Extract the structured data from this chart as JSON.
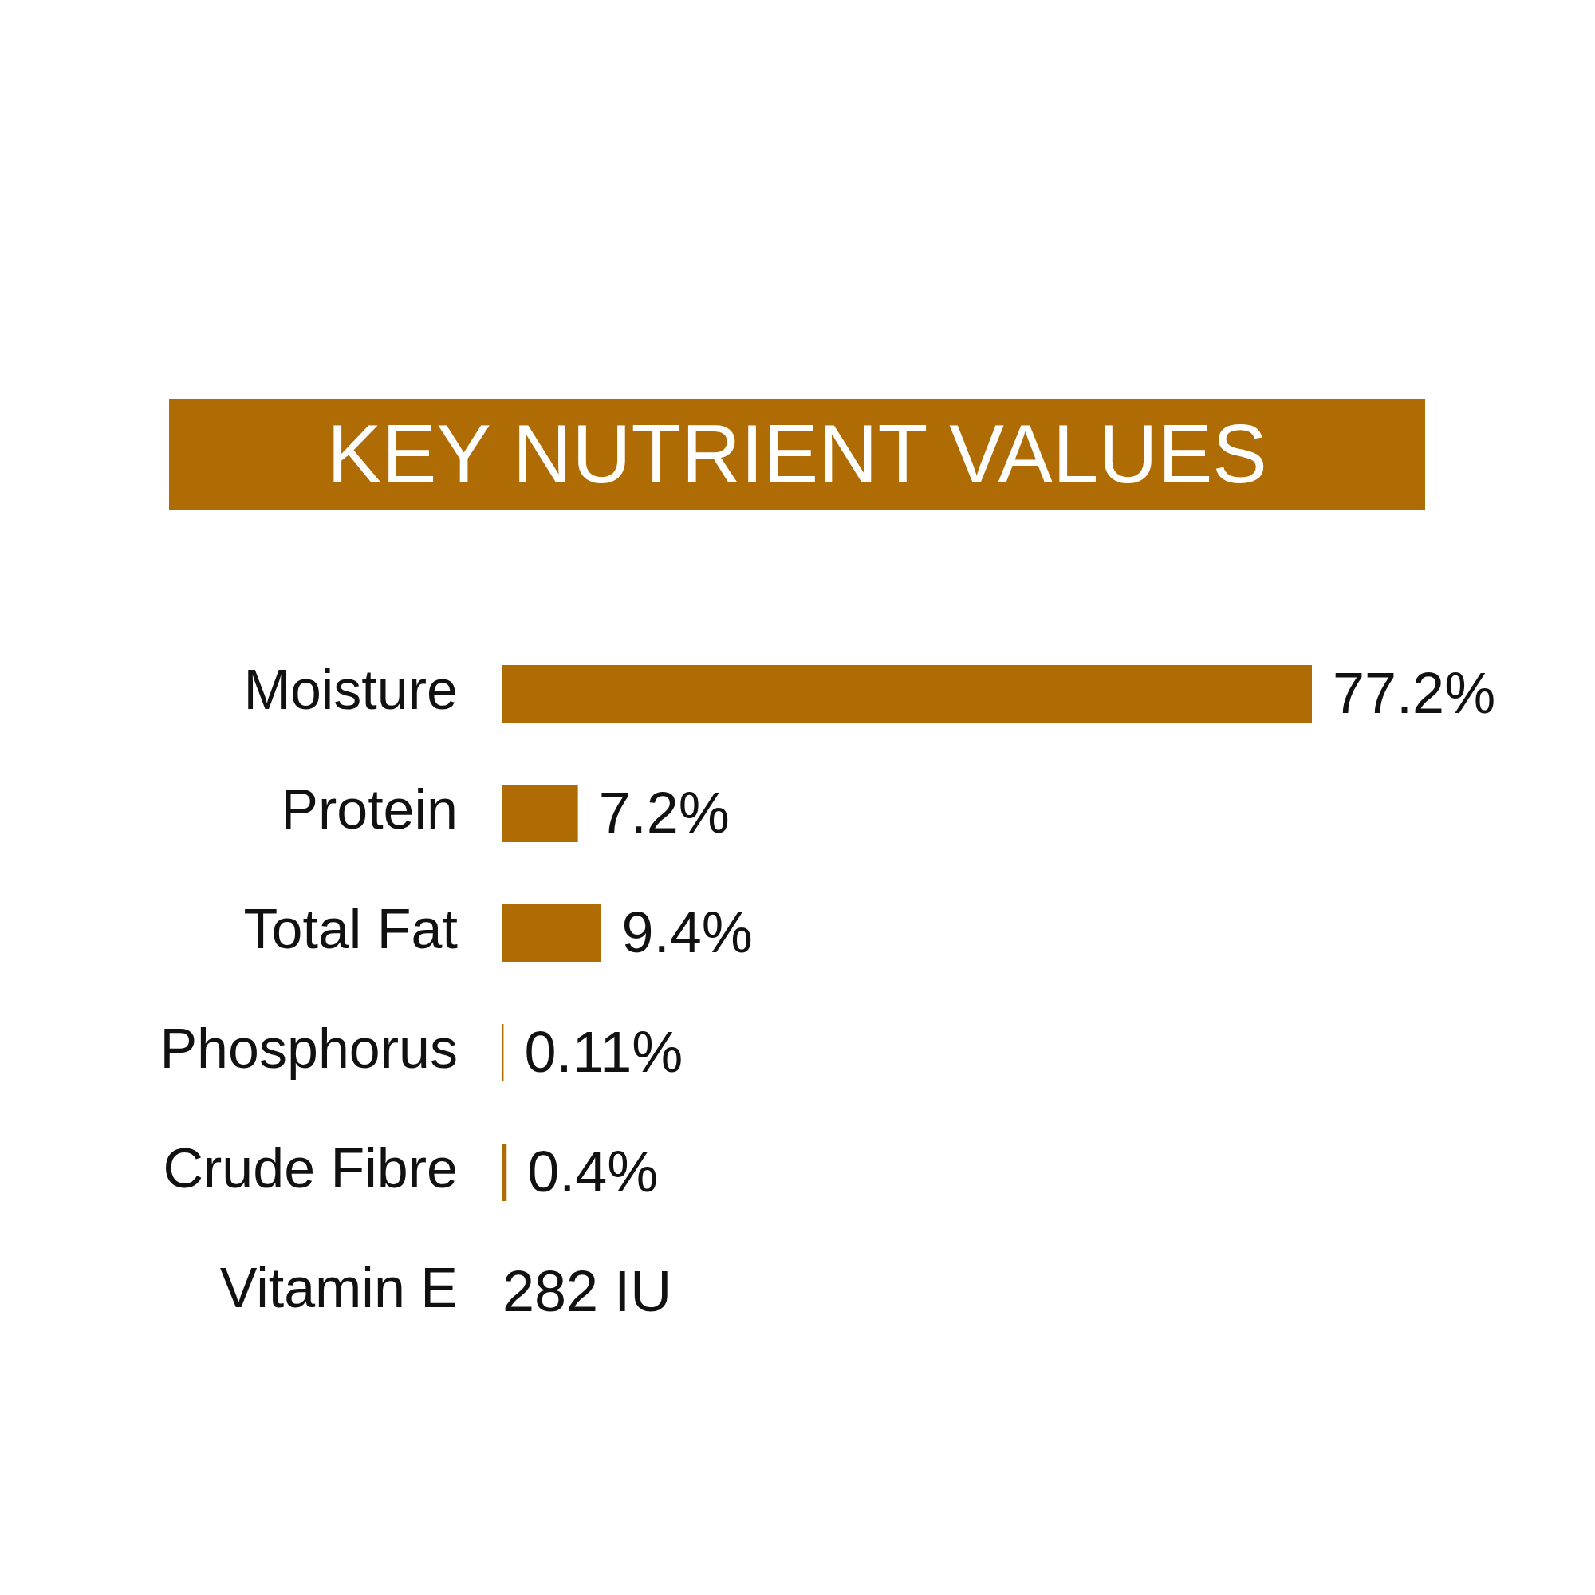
{
  "chart_data": {
    "type": "bar",
    "orientation": "horizontal",
    "title": "KEY NUTRIENT VALUES",
    "categories": [
      "Moisture",
      "Protein",
      "Total Fat",
      "Phosphorus",
      "Crude Fibre",
      "Vitamin E"
    ],
    "values": [
      77.2,
      7.2,
      9.4,
      0.11,
      0.4,
      null
    ],
    "value_labels": [
      "77.2%",
      "7.2%",
      "9.4%",
      "0.11%",
      "0.4%",
      "282 IU"
    ],
    "color": "#b06c04",
    "tick_labels": "y"
  }
}
